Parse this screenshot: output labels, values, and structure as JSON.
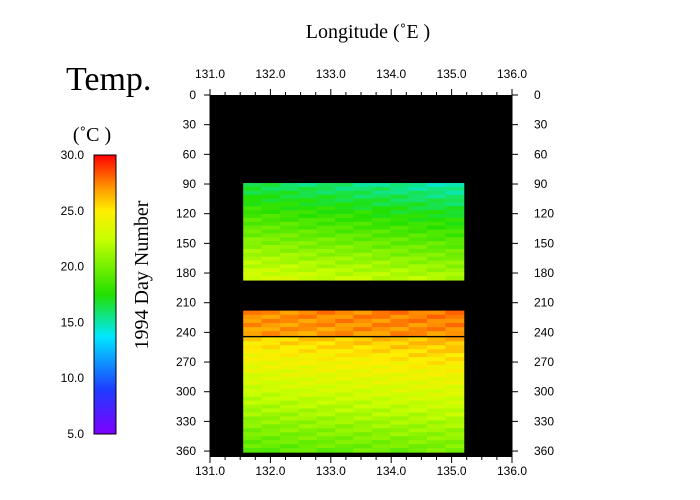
{
  "chart_data": {
    "type": "heatmap",
    "title": "Temp.",
    "x_axis": {
      "label": "Longitude  (˚E )",
      "range": [
        131.0,
        136.0
      ],
      "ticks": [
        131.0,
        132.0,
        133.0,
        134.0,
        135.0,
        136.0
      ],
      "tick_labels": [
        "131.0",
        "132.0",
        "133.0",
        "134.0",
        "135.0",
        "136.0"
      ]
    },
    "y_axis": {
      "label": "1994  Day Number",
      "range": [
        0,
        366
      ],
      "inverted": true,
      "ticks": [
        0,
        30,
        60,
        90,
        120,
        150,
        180,
        210,
        240,
        270,
        300,
        330,
        360
      ],
      "tick_labels": [
        "0",
        "30",
        "60",
        "90",
        "120",
        "150",
        "180",
        "210",
        "240",
        "270",
        "300",
        "330",
        "360"
      ]
    },
    "colorbar": {
      "unit": "(˚C )",
      "range": [
        5.0,
        30.0
      ],
      "ticks": [
        5.0,
        10.0,
        15.0,
        20.0,
        25.0,
        30.0
      ],
      "tick_labels": [
        "5.0",
        "10.0",
        "15.0",
        "20.0",
        "25.0",
        "30.0"
      ],
      "colormap": "rainbow (violet → blue → cyan → green → yellow → orange → red)"
    },
    "background_color": "#000000",
    "data_regions": [
      {
        "lon_range": [
          131.55,
          135.2
        ],
        "day_range": [
          89,
          187
        ],
        "temp_west": 19.5,
        "temp_east": 18.0,
        "temp_start": 15.5,
        "temp_end": 22.5
      },
      {
        "lon_range": [
          131.55,
          135.2
        ],
        "day_range": [
          218,
          243
        ],
        "temp_west": 27.0,
        "temp_east": 27.5,
        "temp_start": 27.5,
        "temp_end": 27.0
      },
      {
        "lon_range": [
          131.55,
          135.2
        ],
        "day_range": [
          245,
          361
        ],
        "temp_west": 23.0,
        "temp_east": 24.0,
        "temp_start": 26.0,
        "temp_end": 19.5
      }
    ]
  }
}
